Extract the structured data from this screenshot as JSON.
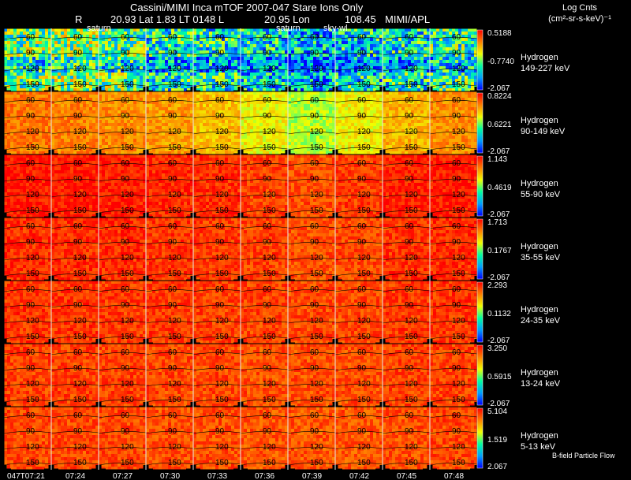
{
  "header": {
    "title": "Cassini/MIMI Inca mTOF  2007-047   Stare    Ions Only",
    "r_label": "R",
    "lat_text": "20.93 Lat 1.83 LT 0148 L",
    "lon_text": "20.95 Lon",
    "value_text": "108.45",
    "org": "MIMI/APL"
  },
  "units": {
    "title": "Log Cnts",
    "subtitle": "(cm²-sr-s-keV)⁻¹"
  },
  "footer_note": "B-field Particle Flow",
  "chart_data": {
    "type": "heatmap",
    "time_labels": [
      "047T07:21",
      "07:24",
      "07:27",
      "07:30",
      "07:33",
      "07:36",
      "07:39",
      "07:42",
      "07:45",
      "07:48"
    ],
    "angle_labels": [
      "60",
      "90",
      "120",
      "150"
    ],
    "overlay_labels": [
      {
        "text": "saturn",
        "row": 0,
        "col": 1
      },
      {
        "text": "saturn",
        "row": 0,
        "col": 5
      },
      {
        "text": "sky-wl",
        "row": 0,
        "col": 6
      }
    ],
    "rows": [
      {
        "species": "Hydrogen",
        "energy": "149-227 keV",
        "max": "0.5188",
        "mid": "-0.7740",
        "min": "-2.067",
        "level": [
          0.45,
          0.5,
          0.45,
          0.35,
          0.35,
          0.3,
          0.25,
          0.3,
          0.35,
          0.4
        ]
      },
      {
        "species": "Hydrogen",
        "energy": "90-149 keV",
        "max": "0.8224",
        "mid": "0.6221",
        "min": "-2.067",
        "level": [
          0.82,
          0.8,
          0.78,
          0.76,
          0.7,
          0.62,
          0.55,
          0.62,
          0.72,
          0.78
        ]
      },
      {
        "species": "Hydrogen",
        "energy": "55-90 keV",
        "max": "1.143",
        "mid": "0.4619",
        "min": "-2.067",
        "level": [
          0.97,
          0.96,
          0.96,
          0.94,
          0.93,
          0.9,
          0.88,
          0.91,
          0.95,
          0.96
        ]
      },
      {
        "species": "Hydrogen",
        "energy": "35-55 keV",
        "max": "1.713",
        "mid": "0.1767",
        "min": "-2.067",
        "level": [
          0.93,
          0.93,
          0.93,
          0.92,
          0.91,
          0.9,
          0.88,
          0.89,
          0.92,
          0.93
        ]
      },
      {
        "species": "Hydrogen",
        "energy": "24-35 keV",
        "max": "2.293",
        "mid": "0.1132",
        "min": "-2.067",
        "level": [
          0.92,
          0.92,
          0.91,
          0.91,
          0.9,
          0.9,
          0.89,
          0.89,
          0.91,
          0.92
        ]
      },
      {
        "species": "Hydrogen",
        "energy": "13-24 keV",
        "max": "3.250",
        "mid": "0.5915",
        "min": "-2.067",
        "level": [
          0.9,
          0.9,
          0.9,
          0.89,
          0.89,
          0.88,
          0.88,
          0.88,
          0.9,
          0.9
        ]
      },
      {
        "species": "Hydrogen",
        "energy": "5-13 keV",
        "max": "5.104",
        "mid": "1.519",
        "min": "2.067",
        "level": [
          0.89,
          0.89,
          0.89,
          0.88,
          0.88,
          0.87,
          0.87,
          0.87,
          0.88,
          0.89
        ]
      }
    ]
  }
}
